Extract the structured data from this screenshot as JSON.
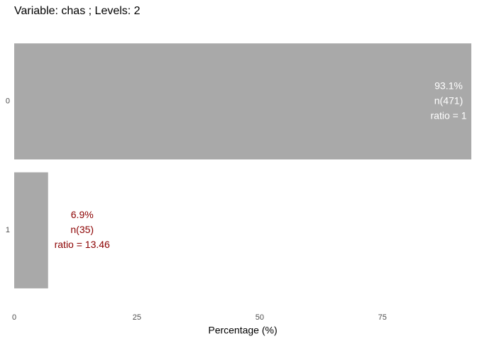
{
  "chart_data": {
    "type": "bar",
    "orientation": "horizontal",
    "title": "Variable: chas ; Levels:  2",
    "categories": [
      "0",
      "1"
    ],
    "values": [
      93.1,
      6.9
    ],
    "value_labels": [
      "93.1%",
      "6.9%"
    ],
    "count_labels": [
      "n(471)",
      "n(35)"
    ],
    "ratio_labels": [
      "ratio = 1",
      "ratio = 13.46"
    ],
    "label_colors": [
      "#ffffff",
      "#8b0000"
    ],
    "color": "#a9a9a9",
    "xlabel": "Percentage (%)",
    "xlim": [
      0,
      93.1
    ],
    "xticks": [
      0,
      25,
      50,
      75
    ],
    "grid": false
  }
}
